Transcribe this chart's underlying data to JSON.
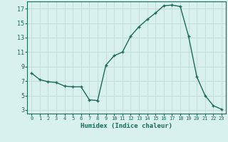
{
  "x": [
    0,
    1,
    2,
    3,
    4,
    5,
    6,
    7,
    8,
    9,
    10,
    11,
    12,
    13,
    14,
    15,
    16,
    17,
    18,
    19,
    20,
    21,
    22,
    23
  ],
  "y": [
    8.1,
    7.2,
    6.9,
    6.8,
    6.3,
    6.2,
    6.2,
    4.4,
    4.3,
    9.2,
    10.5,
    11.0,
    13.2,
    14.5,
    15.5,
    16.4,
    17.4,
    17.5,
    17.3,
    13.2,
    7.6,
    5.0,
    3.6,
    3.1
  ],
  "xlabel": "Humidex (Indice chaleur)",
  "bg_color": "#d8f0ee",
  "grid_color": "#c4dbd8",
  "line_color": "#1a6b5a",
  "ylim": [
    2.5,
    18.0
  ],
  "xlim": [
    -0.5,
    23.5
  ],
  "yticks": [
    3,
    5,
    7,
    9,
    11,
    13,
    15,
    17
  ],
  "xticks": [
    0,
    1,
    2,
    3,
    4,
    5,
    6,
    7,
    8,
    9,
    10,
    11,
    12,
    13,
    14,
    15,
    16,
    17,
    18,
    19,
    20,
    21,
    22,
    23
  ]
}
